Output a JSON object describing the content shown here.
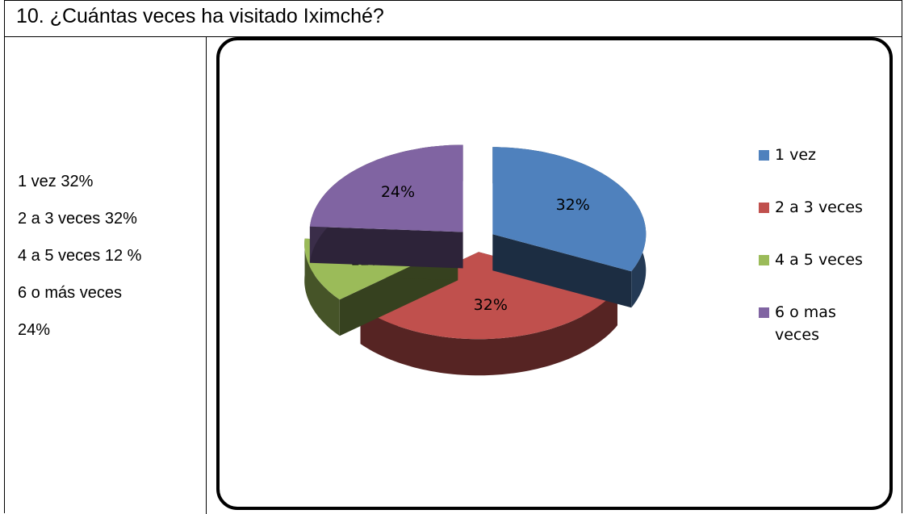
{
  "title": "10. ¿Cuántas veces ha visitado Iximché?",
  "summary": [
    "1 vez 32%",
    "2 a 3 veces 32%",
    "4 a 5 veces 12 %",
    "6 o más veces",
    "24%"
  ],
  "chart_data": {
    "type": "pie",
    "categories": [
      "1 vez",
      "2 a 3 veces",
      "4 a 5 veces",
      "6 o mas veces"
    ],
    "values": [
      32,
      32,
      12,
      24
    ],
    "value_labels": [
      "32%",
      "32%",
      "12%",
      "24%"
    ],
    "colors": [
      "#4f81bd",
      "#c0504d",
      "#9bbb59",
      "#8064a2"
    ]
  }
}
